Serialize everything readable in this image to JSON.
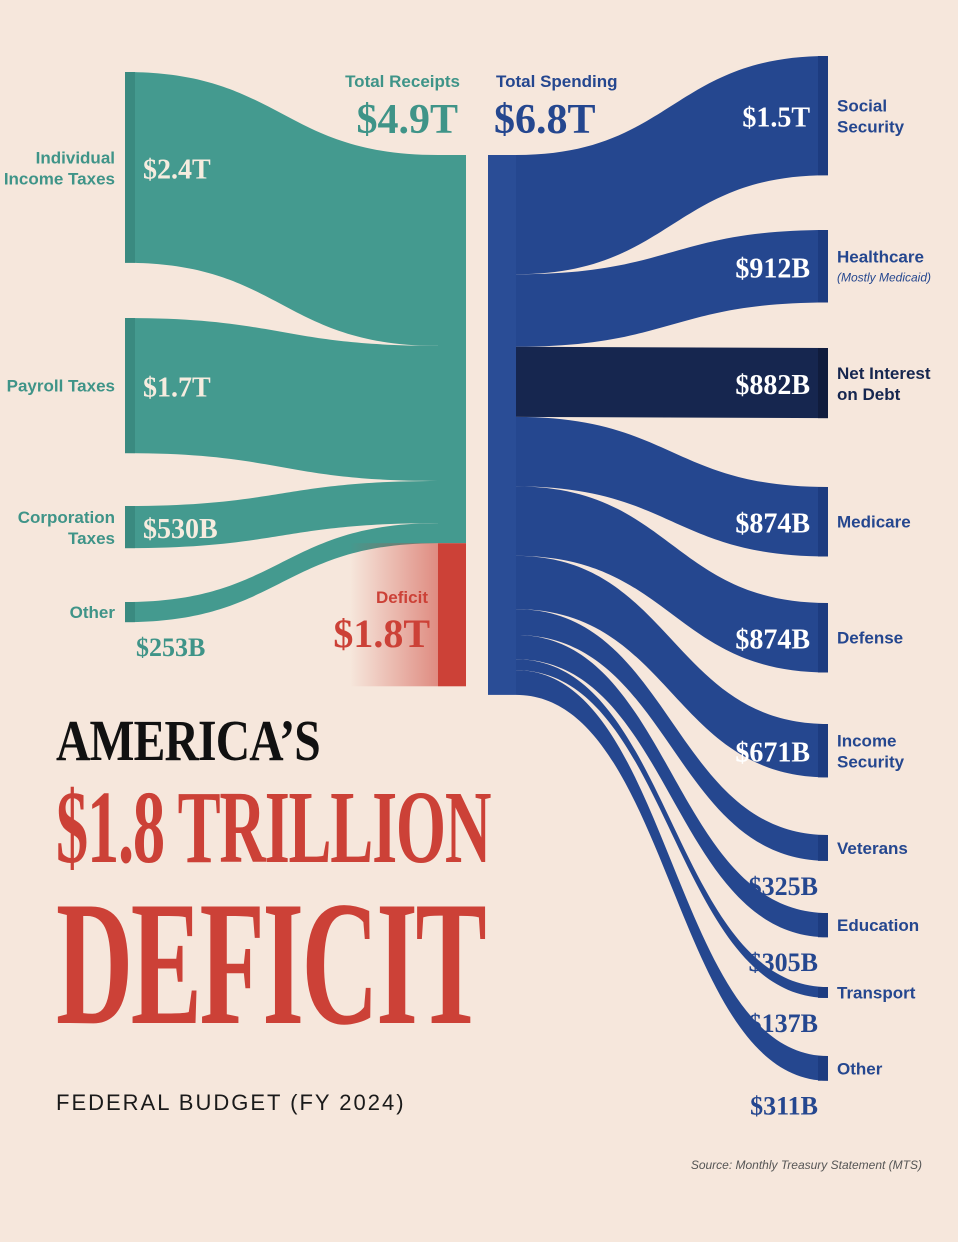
{
  "chart_data": {
    "type": "sankey",
    "units": "USD",
    "receipts_header": {
      "label": "Total Receipts",
      "value_label": "$4.9T",
      "value": 4900000000000.0
    },
    "spending_header": {
      "label": "Total Spending",
      "value_label": "$6.8T",
      "value": 6800000000000.0
    },
    "receipts": [
      {
        "name": "Individual Income Taxes",
        "lines": [
          "Individual",
          "Income Taxes"
        ],
        "value_label": "$2.4T",
        "value": 2400000000000.0
      },
      {
        "name": "Payroll Taxes",
        "lines": [
          "Payroll Taxes"
        ],
        "value_label": "$1.7T",
        "value": 1700000000000.0
      },
      {
        "name": "Corporation Taxes",
        "lines": [
          "Corporation",
          "Taxes"
        ],
        "value_label": "$530B",
        "value": 530000000000.0
      },
      {
        "name": "Other",
        "lines": [
          "Other"
        ],
        "value_label": "$253B",
        "value": 253000000000.0
      }
    ],
    "deficit": {
      "label": "Deficit",
      "value_label": "$1.8T",
      "value": 1800000000000.0
    },
    "spending": [
      {
        "name": "Social Security",
        "lines": [
          "Social",
          "Security"
        ],
        "sub": "",
        "value_label": "$1.5T",
        "value": 1500000000000.0
      },
      {
        "name": "Healthcare",
        "lines": [
          "Healthcare"
        ],
        "sub": "(Mostly Medicaid)",
        "value_label": "$912B",
        "value": 912000000000.0
      },
      {
        "name": "Net Interest on Debt",
        "lines": [
          "Net Interest",
          "on Debt"
        ],
        "sub": "",
        "value_label": "$882B",
        "value": 882000000000.0,
        "highlight": true
      },
      {
        "name": "Medicare",
        "lines": [
          "Medicare"
        ],
        "sub": "",
        "value_label": "$874B",
        "value": 874000000000.0
      },
      {
        "name": "Defense",
        "lines": [
          "Defense"
        ],
        "sub": "",
        "value_label": "$874B",
        "value": 874000000000.0
      },
      {
        "name": "Income Security",
        "lines": [
          "Income",
          "Security"
        ],
        "sub": "",
        "value_label": "$671B",
        "value": 671000000000.0
      },
      {
        "name": "Veterans",
        "lines": [
          "Veterans"
        ],
        "sub": "",
        "value_label": "$325B",
        "value": 325000000000.0
      },
      {
        "name": "Education",
        "lines": [
          "Education"
        ],
        "sub": "",
        "value_label": "$305B",
        "value": 305000000000.0
      },
      {
        "name": "Transport",
        "lines": [
          "Transport"
        ],
        "sub": "",
        "value_label": "$137B",
        "value": 137000000000.0
      },
      {
        "name": "Other",
        "lines": [
          "Other"
        ],
        "sub": "",
        "value_label": "$311B",
        "value": 311000000000.0
      }
    ],
    "colors": {
      "receipts": "#449a8f",
      "receipts_text": "#3f9488",
      "spending": "#25478f",
      "interest": "#16264f",
      "deficit": "#cc4137"
    }
  },
  "title": {
    "line1": "AMERICA’S",
    "line2": "$1.8 TRILLION",
    "line3": "DEFICIT"
  },
  "subtitle": "FEDERAL BUDGET (FY 2024)",
  "source": "Source: Monthly Treasury Statement (MTS)"
}
